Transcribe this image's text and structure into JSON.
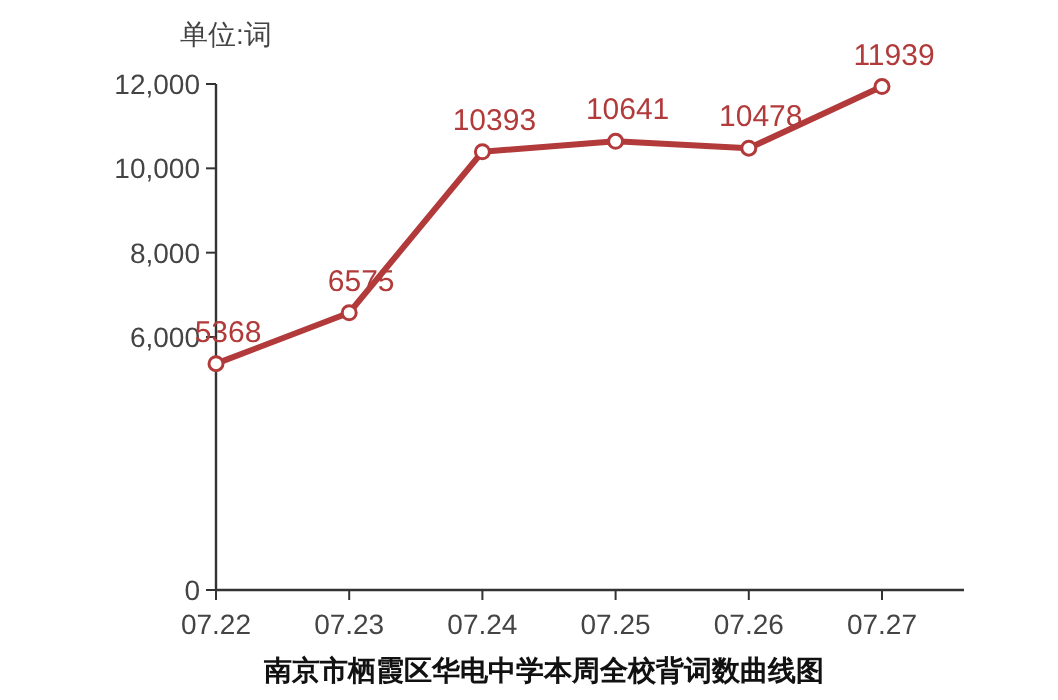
{
  "chart_data": {
    "type": "line",
    "title": "南京市栖霞区华电中学本周全校背词数曲线图",
    "ylabel": "单位:词",
    "categories": [
      "07.22",
      "07.23",
      "07.24",
      "07.25",
      "07.26",
      "07.27"
    ],
    "series": [
      {
        "color": "#b23a3a",
        "values": [
          5368,
          6575,
          10393,
          10641,
          10478,
          11939
        ]
      }
    ],
    "ylim": [
      0,
      12000
    ],
    "yticks": [
      0,
      {
        "value": 6000,
        "label": "6,000"
      },
      {
        "value": 8000,
        "label": "8,000"
      },
      {
        "value": 10000,
        "label": "10,000"
      },
      {
        "value": 12000,
        "label": "12,000"
      }
    ],
    "data_labels": true,
    "marker": "circle"
  }
}
